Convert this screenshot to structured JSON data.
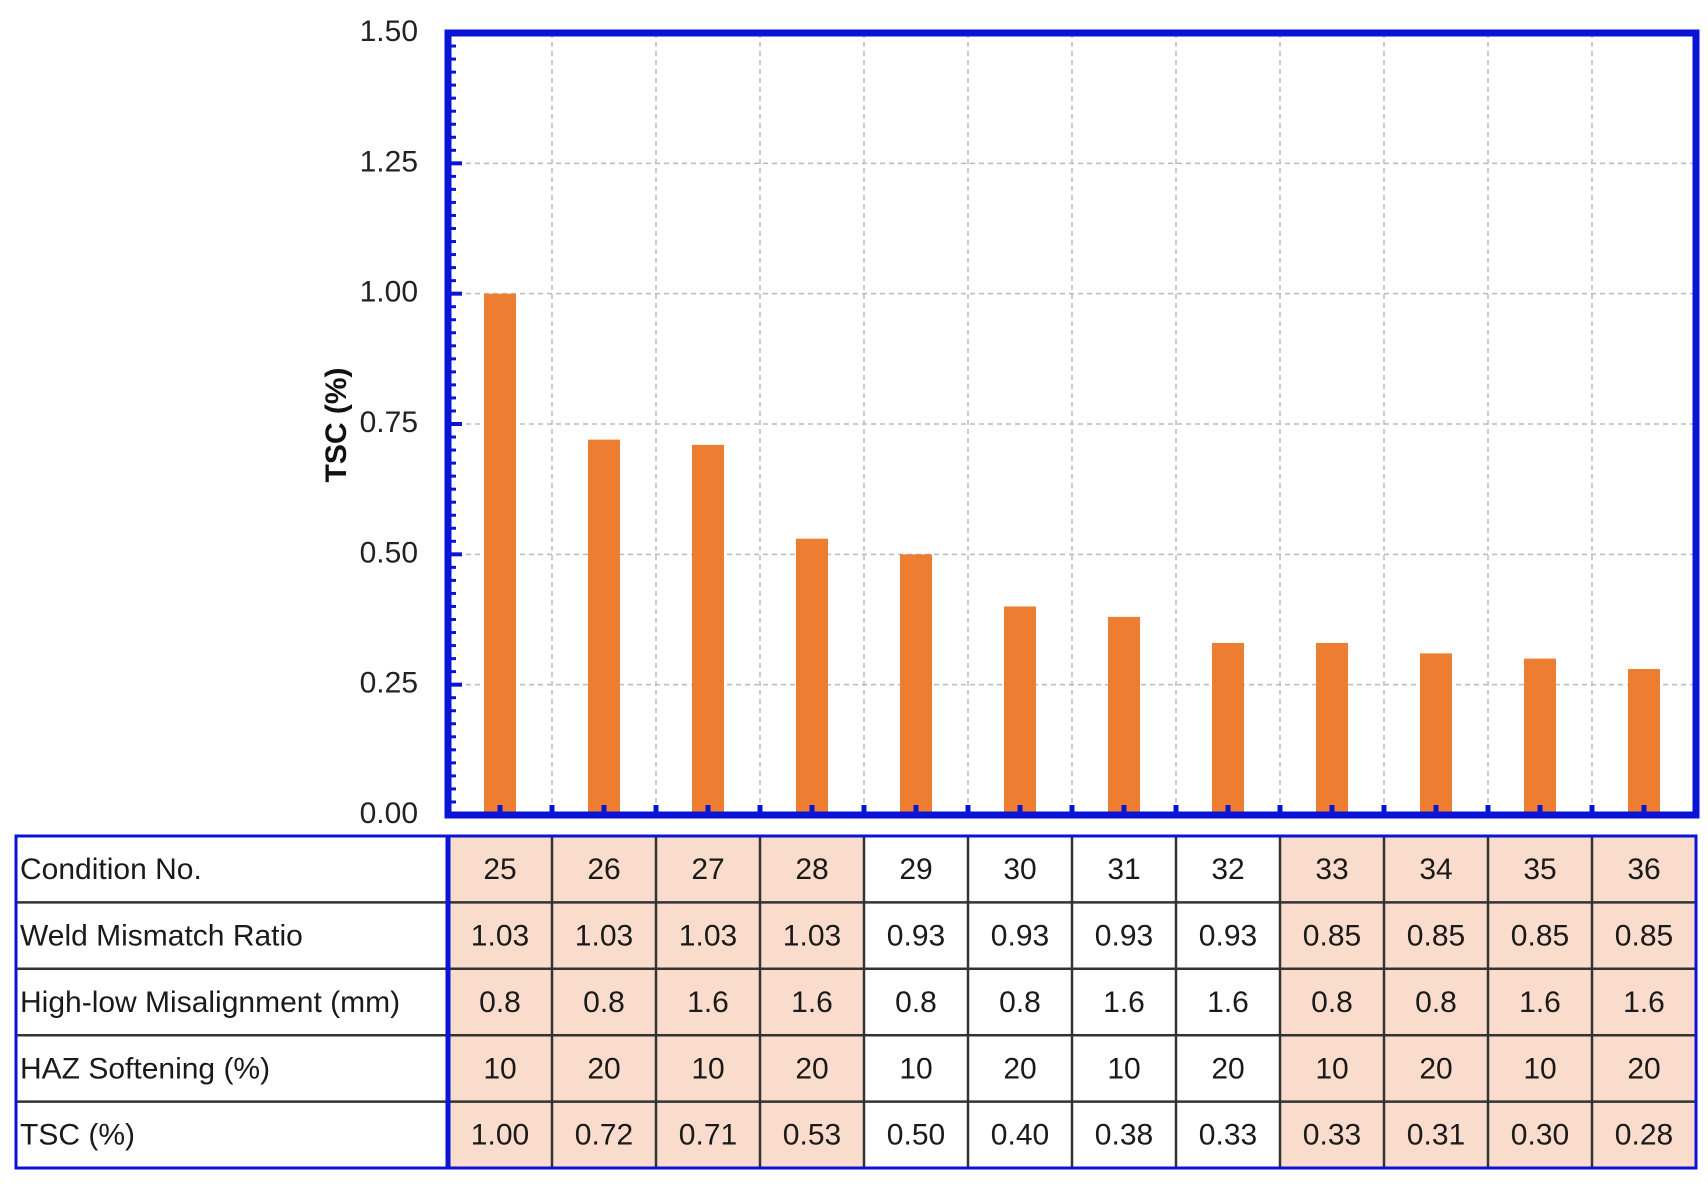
{
  "chart_data": {
    "type": "bar",
    "ylabel": "TSC (%)",
    "ylim": [
      0,
      1.5
    ],
    "yticks": [
      "0.00",
      "0.25",
      "0.50",
      "0.75",
      "1.00",
      "1.25",
      "1.50"
    ],
    "grid": true,
    "colors": {
      "bar": "#ED7D31",
      "frame": "#0A14D6",
      "highlight": "#F9DCCB",
      "grid": "#BBBBBB"
    },
    "categories": [
      "25",
      "26",
      "27",
      "28",
      "29",
      "30",
      "31",
      "32",
      "33",
      "34",
      "35",
      "36"
    ],
    "values": [
      1.0,
      0.72,
      0.71,
      0.53,
      0.5,
      0.4,
      0.38,
      0.33,
      0.33,
      0.31,
      0.3,
      0.28
    ],
    "table": {
      "rows": [
        {
          "label": "Condition No.",
          "cells": [
            "25",
            "26",
            "27",
            "28",
            "29",
            "30",
            "31",
            "32",
            "33",
            "34",
            "35",
            "36"
          ]
        },
        {
          "label": "Weld Mismatch Ratio",
          "cells": [
            "1.03",
            "1.03",
            "1.03",
            "1.03",
            "0.93",
            "0.93",
            "0.93",
            "0.93",
            "0.85",
            "0.85",
            "0.85",
            "0.85"
          ]
        },
        {
          "label": "High-low Misalignment (mm)",
          "cells": [
            "0.8",
            "0.8",
            "1.6",
            "1.6",
            "0.8",
            "0.8",
            "1.6",
            "1.6",
            "0.8",
            "0.8",
            "1.6",
            "1.6"
          ]
        },
        {
          "label": "HAZ Softening (%)",
          "cells": [
            "10",
            "20",
            "10",
            "20",
            "10",
            "20",
            "10",
            "20",
            "10",
            "20",
            "10",
            "20"
          ]
        },
        {
          "label": "TSC (%)",
          "cells": [
            "1.00",
            "0.72",
            "0.71",
            "0.53",
            "0.50",
            "0.40",
            "0.38",
            "0.33",
            "0.33",
            "0.31",
            "0.30",
            "0.28"
          ]
        }
      ],
      "highlighted_columns": [
        true,
        true,
        true,
        true,
        false,
        false,
        false,
        false,
        true,
        true,
        true,
        true
      ]
    }
  }
}
